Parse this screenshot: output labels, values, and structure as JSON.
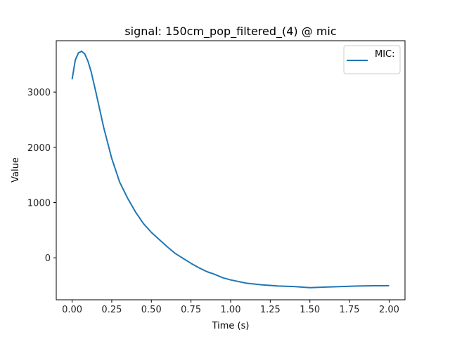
{
  "chart_data": {
    "type": "line",
    "title": "signal: 150cm_pop_filtered_(4) @ mic",
    "xlabel": "Time (s)",
    "ylabel": "Value",
    "xlim": [
      -0.1,
      2.1
    ],
    "ylim": [
      -760,
      3930
    ],
    "xticks": [
      0.0,
      0.25,
      0.5,
      0.75,
      1.0,
      1.25,
      1.5,
      1.75,
      2.0
    ],
    "xtick_labels": [
      "0.00",
      "0.25",
      "0.50",
      "0.75",
      "1.00",
      "1.25",
      "1.50",
      "1.75",
      "2.00"
    ],
    "yticks": [
      0,
      1000,
      2000,
      3000
    ],
    "ytick_labels": [
      "0",
      "1000",
      "2000",
      "3000"
    ],
    "grid": false,
    "legend_position": "top-right",
    "series": [
      {
        "name": "MIC:",
        "color": "#1f77b4",
        "x": [
          0.0,
          0.02,
          0.04,
          0.06,
          0.08,
          0.1,
          0.12,
          0.15,
          0.2,
          0.25,
          0.3,
          0.35,
          0.4,
          0.45,
          0.5,
          0.55,
          0.6,
          0.65,
          0.7,
          0.75,
          0.8,
          0.85,
          0.9,
          0.95,
          1.0,
          1.1,
          1.2,
          1.3,
          1.4,
          1.5,
          1.6,
          1.7,
          1.8,
          1.9,
          2.0
        ],
        "y": [
          3230,
          3580,
          3710,
          3740,
          3690,
          3560,
          3370,
          3000,
          2350,
          1800,
          1370,
          1080,
          830,
          620,
          460,
          330,
          200,
          80,
          -10,
          -100,
          -180,
          -250,
          -300,
          -360,
          -400,
          -460,
          -490,
          -510,
          -520,
          -540,
          -530,
          -520,
          -510,
          -505,
          -505
        ]
      }
    ]
  }
}
